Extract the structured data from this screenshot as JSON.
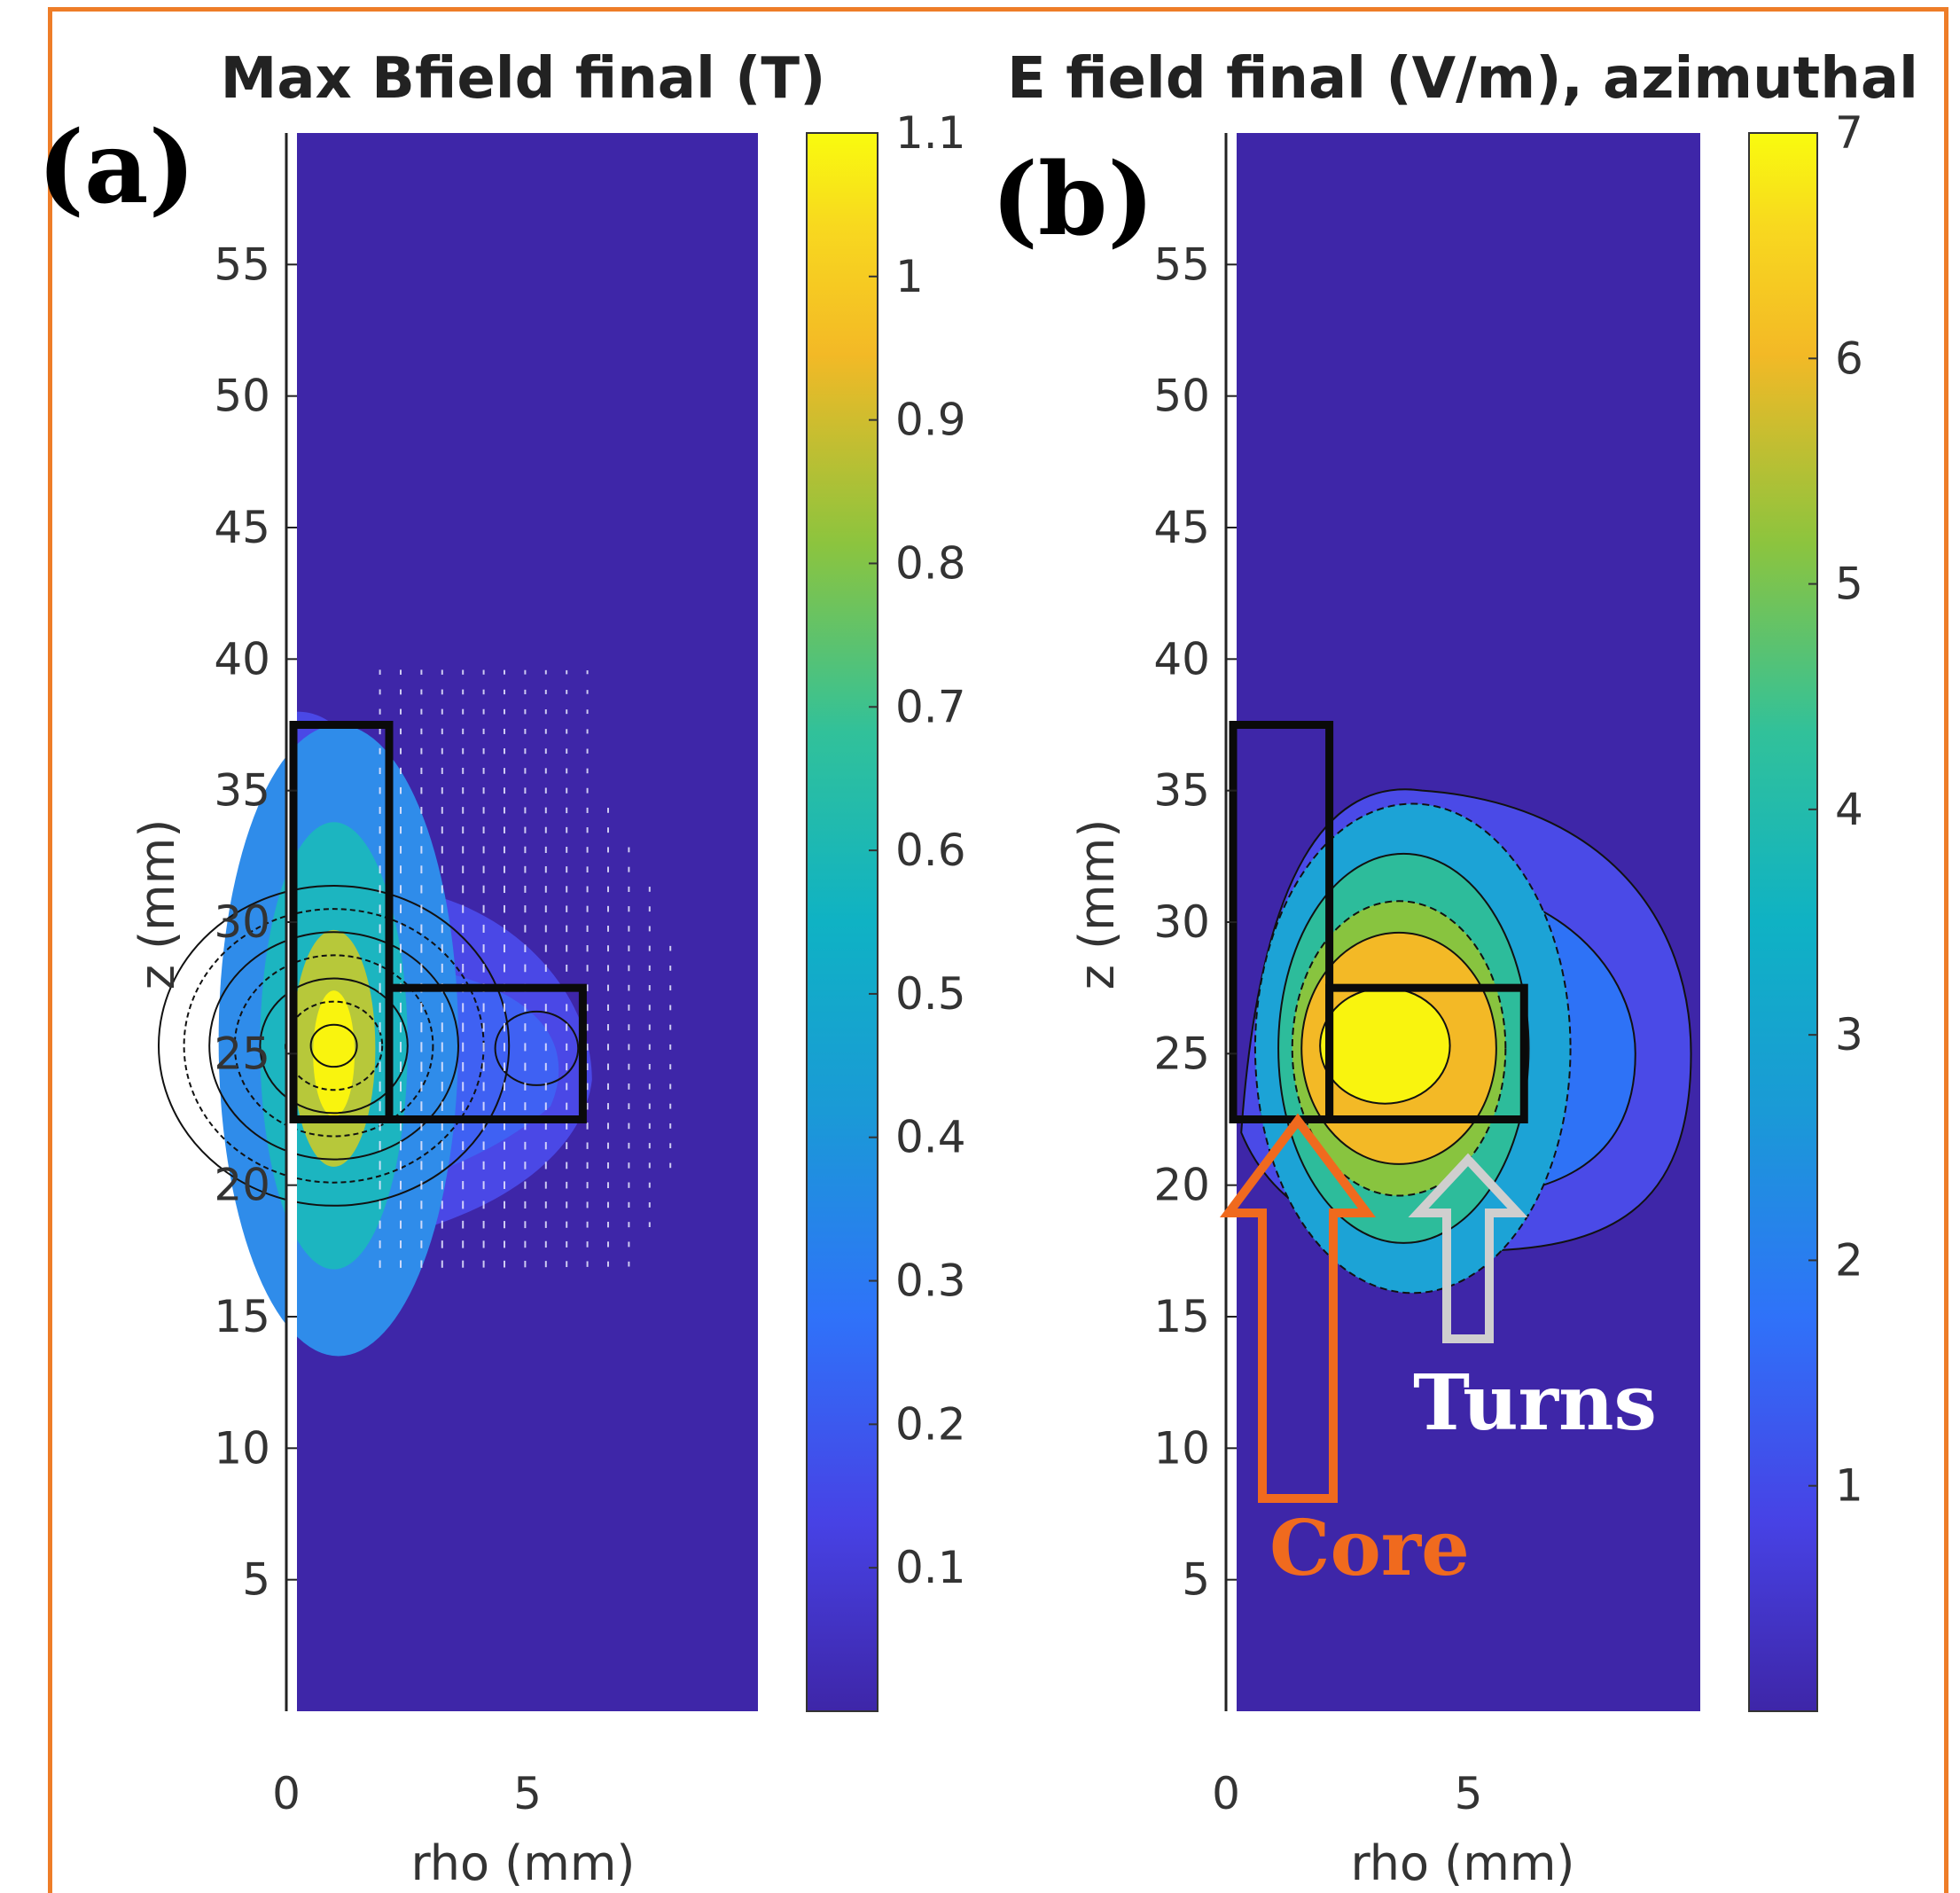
{
  "figure": {
    "panel_labels": [
      "(a)",
      "(b)"
    ],
    "annotations": [
      {
        "text": "Core",
        "color": "#f06a1e"
      },
      {
        "text": "Turns",
        "color": "#ffffff"
      }
    ],
    "colormap": "parula"
  },
  "chart_data": [
    {
      "type": "heatmap",
      "title": "Max Bfield final (T)",
      "xlabel": "rho (mm)",
      "ylabel": "z (mm)",
      "xlim": [
        0,
        10
      ],
      "ylim": [
        0,
        60
      ],
      "xticks": [
        0,
        5
      ],
      "yticks": [
        5,
        10,
        15,
        20,
        25,
        30,
        35,
        40,
        45,
        50,
        55
      ],
      "colorbar": {
        "min": 0,
        "max": 1.1,
        "ticks": [
          0.1,
          0.2,
          0.3,
          0.4,
          0.5,
          0.6,
          0.7,
          0.8,
          0.9,
          1,
          1.1
        ],
        "tick_labels": [
          "0.1",
          "0.2",
          "0.3",
          "0.4",
          "0.5",
          "0.6",
          "0.7",
          "0.8",
          "0.9",
          "1",
          "1.1"
        ]
      },
      "peak": {
        "rho": 0.8,
        "z": 25,
        "value": 1.1
      },
      "core_box": {
        "rho": [
          0,
          2
        ],
        "z": [
          22.5,
          37.5
        ]
      },
      "turns_box": {
        "rho": [
          2,
          6.2
        ],
        "z": [
          22.5,
          27.5
        ]
      },
      "background_value": 0.0,
      "quiver": true,
      "contours": true
    },
    {
      "type": "heatmap",
      "title": "E field final (V/m), azimuthal",
      "xlabel": "rho (mm)",
      "ylabel": "z (mm)",
      "xlim": [
        0,
        10
      ],
      "ylim": [
        0,
        60
      ],
      "xticks": [
        0,
        5
      ],
      "yticks": [
        5,
        10,
        15,
        20,
        25,
        30,
        35,
        40,
        45,
        50,
        55
      ],
      "colorbar": {
        "min": 0,
        "max": 7,
        "ticks": [
          1,
          2,
          3,
          4,
          5,
          6,
          7
        ],
        "tick_labels": [
          "1",
          "2",
          "3",
          "4",
          "5",
          "6",
          "7"
        ]
      },
      "peak": {
        "rho": 3.2,
        "z": 25.3,
        "value": 7
      },
      "core_box": {
        "rho": [
          0,
          2
        ],
        "z": [
          22.5,
          37.5
        ]
      },
      "turns_box": {
        "rho": [
          2,
          6.2
        ],
        "z": [
          22.5,
          27.5
        ]
      },
      "background_value": 0.0,
      "contours": true
    }
  ]
}
